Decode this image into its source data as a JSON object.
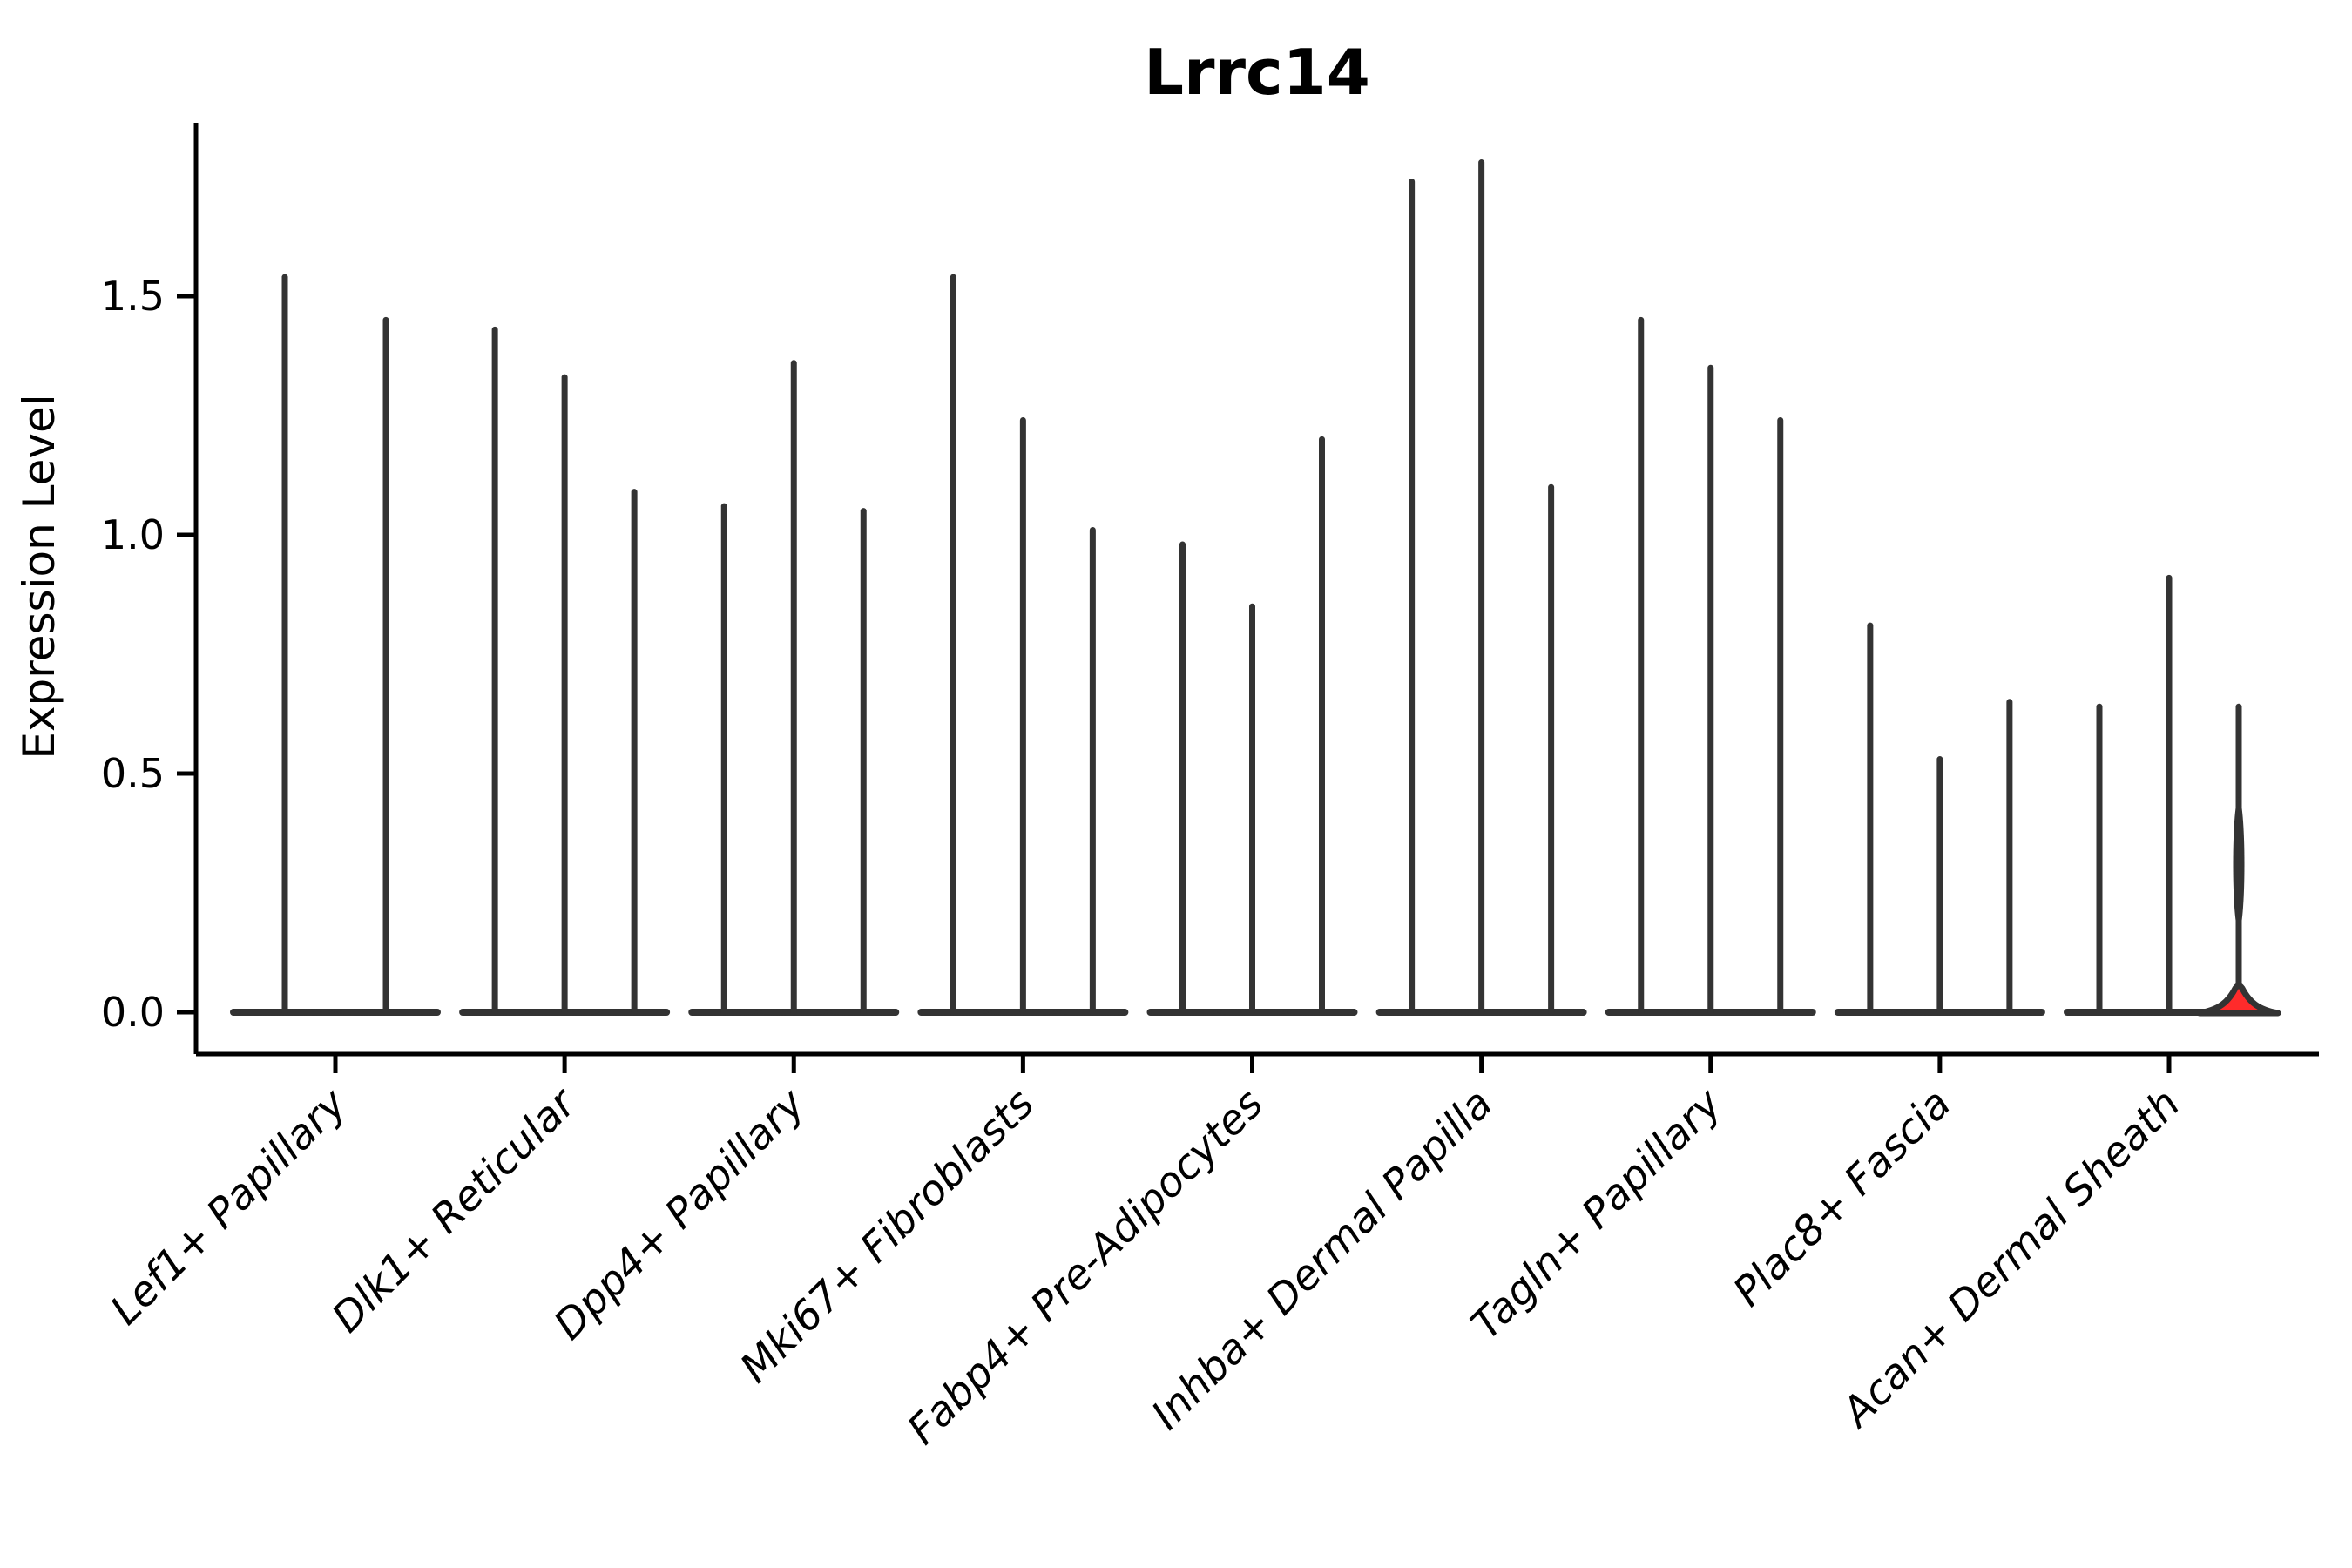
{
  "title": "Lrrc14",
  "axes": {
    "ylabel": "Expression Level",
    "ytick_labels": [
      "0.0",
      "0.5",
      "1.0",
      "1.5"
    ]
  },
  "chart_data": {
    "type": "violin",
    "title": "Lrrc14",
    "xlabel": "",
    "ylabel": "Expression Level",
    "ylim": [
      -0.09,
      1.86
    ],
    "ytick_values": [
      0.0,
      0.5,
      1.0,
      1.5
    ],
    "grid": false,
    "legend_position": "none",
    "categories": [
      "Lef1+ Papillary",
      "Dlk1+ Reticular",
      "Dpp4+ Papillary",
      "Mki67+ Fibroblasts",
      "Fabp4+ Pre-Adipocytes",
      "Inhba+ Dermal Papilla",
      "Tagln+ Papillary",
      "Plac8+ Fascia",
      "Acan+ Dermal Sheath"
    ],
    "description": "Violin plot of Lrrc14 expression per fibroblast cluster; each cluster contains 2-3 needle-thin violins (density collapsed at 0 with a thin spike up to the max expressing cell). Only the last violin of Acan+ Dermal Sheath (highlighted red) shows visible density above 0.",
    "groups": [
      {
        "category": "Lef1+ Papillary",
        "violins": [
          {
            "max": 1.54
          },
          {
            "max": 1.45
          }
        ]
      },
      {
        "category": "Dlk1+ Reticular",
        "violins": [
          {
            "max": 1.43
          },
          {
            "max": 1.33
          },
          {
            "max": 1.09
          }
        ]
      },
      {
        "category": "Dpp4+ Papillary",
        "violins": [
          {
            "max": 1.06
          },
          {
            "max": 1.36
          },
          {
            "max": 1.05
          }
        ]
      },
      {
        "category": "Mki67+ Fibroblasts",
        "violins": [
          {
            "max": 1.54
          },
          {
            "max": 1.24
          },
          {
            "max": 1.01
          }
        ]
      },
      {
        "category": "Fabp4+ Pre-Adipocytes",
        "violins": [
          {
            "max": 0.98
          },
          {
            "max": 0.85
          },
          {
            "max": 1.2
          }
        ]
      },
      {
        "category": "Inhba+ Dermal Papilla",
        "violins": [
          {
            "max": 1.74
          },
          {
            "max": 1.78
          },
          {
            "max": 1.1
          }
        ]
      },
      {
        "category": "Tagln+ Papillary",
        "violins": [
          {
            "max": 1.45
          },
          {
            "max": 1.35
          },
          {
            "max": 1.24
          }
        ]
      },
      {
        "category": "Plac8+ Fascia",
        "violins": [
          {
            "max": 0.81
          },
          {
            "max": 0.53
          },
          {
            "max": 0.65
          }
        ]
      },
      {
        "category": "Acan+ Dermal Sheath",
        "violins": [
          {
            "max": 0.64
          },
          {
            "max": 0.91
          },
          {
            "max": 0.64,
            "highlighted": true,
            "base_peak": 0.05,
            "bulge_center": 0.31,
            "bulge_halfspan": 0.14
          }
        ]
      }
    ],
    "colors": {
      "violin_stroke": "#333333",
      "highlight_fill": "#ff2b2b",
      "axis": "#000000",
      "text": "#000000",
      "background": "#ffffff"
    }
  }
}
